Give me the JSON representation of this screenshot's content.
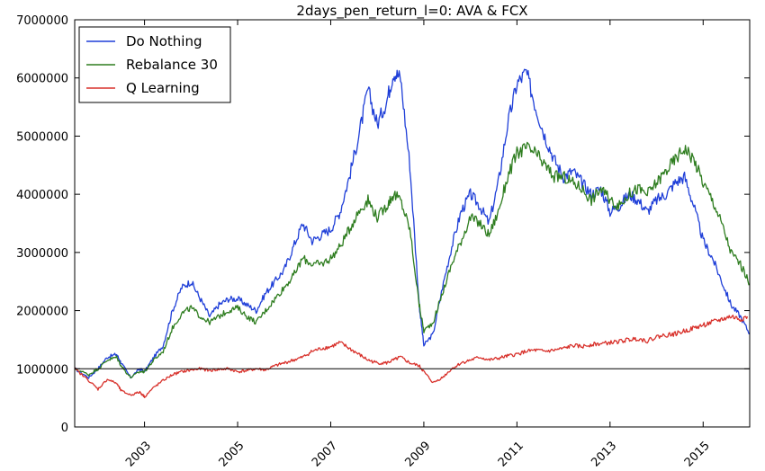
{
  "chart_data": {
    "type": "line",
    "title": "2days_pen_return_l=0: AVA & FCX",
    "xlabel": "",
    "ylabel": "",
    "xlim": [
      2001.5,
      2016.0
    ],
    "ylim": [
      0,
      7000000
    ],
    "x_ticks": [
      2003,
      2005,
      2007,
      2009,
      2011,
      2013,
      2015
    ],
    "x_tick_labels": [
      "2003",
      "2005",
      "2007",
      "2009",
      "2011",
      "2013",
      "2015"
    ],
    "y_ticks": [
      0,
      1000000,
      2000000,
      3000000,
      4000000,
      5000000,
      6000000,
      7000000
    ],
    "y_tick_labels": [
      "0",
      "1000000",
      "2000000",
      "3000000",
      "4000000",
      "5000000",
      "6000000",
      "7000000"
    ],
    "grid": false,
    "legend_position": "top-left",
    "reference_line": {
      "y": 1000000,
      "color": "#000000"
    },
    "series": [
      {
        "name": "Do Nothing",
        "color": "#1f3fd8",
        "x": [
          2001.5,
          2001.8,
          2002.0,
          2002.2,
          2002.4,
          2002.5,
          2002.7,
          2002.9,
          2003.0,
          2003.2,
          2003.4,
          2003.6,
          2003.8,
          2004.0,
          2004.2,
          2004.4,
          2004.6,
          2004.8,
          2005.0,
          2005.2,
          2005.4,
          2005.6,
          2005.8,
          2006.0,
          2006.2,
          2006.4,
          2006.6,
          2006.8,
          2007.0,
          2007.2,
          2007.4,
          2007.6,
          2007.8,
          2008.0,
          2008.2,
          2008.35,
          2008.5,
          2008.7,
          2008.9,
          2009.0,
          2009.2,
          2009.4,
          2009.6,
          2009.8,
          2010.0,
          2010.2,
          2010.4,
          2010.6,
          2010.8,
          2011.0,
          2011.2,
          2011.4,
          2011.6,
          2011.8,
          2012.0,
          2012.2,
          2012.4,
          2012.6,
          2012.8,
          2013.0,
          2013.2,
          2013.4,
          2013.6,
          2013.8,
          2014.0,
          2014.2,
          2014.4,
          2014.6,
          2014.8,
          2015.0,
          2015.2,
          2015.4,
          2015.6,
          2015.8,
          2016.0
        ],
        "values": [
          1000000,
          850000,
          1000000,
          1200000,
          1250000,
          1100000,
          850000,
          1000000,
          950000,
          1200000,
          1400000,
          2000000,
          2400000,
          2500000,
          2200000,
          1900000,
          2100000,
          2200000,
          2200000,
          2100000,
          2000000,
          2300000,
          2500000,
          2700000,
          3100000,
          3500000,
          3200000,
          3300000,
          3400000,
          3700000,
          4300000,
          5000000,
          5800000,
          5200000,
          5600000,
          6100000,
          6000000,
          4500000,
          2100000,
          1400000,
          1600000,
          2400000,
          3100000,
          3700000,
          4000000,
          3800000,
          3500000,
          4200000,
          5200000,
          5900000,
          6100000,
          5500000,
          5000000,
          4600000,
          4300000,
          4400000,
          4200000,
          4000000,
          4100000,
          3700000,
          3800000,
          4000000,
          3900000,
          3700000,
          3900000,
          4000000,
          4200000,
          4300000,
          3800000,
          3200000,
          2900000,
          2500000,
          2100000,
          1900000,
          1600000
        ]
      },
      {
        "name": "Rebalance 30",
        "color": "#2e7d1f",
        "x": [
          2001.5,
          2001.8,
          2002.0,
          2002.2,
          2002.4,
          2002.5,
          2002.7,
          2002.9,
          2003.0,
          2003.2,
          2003.4,
          2003.6,
          2003.8,
          2004.0,
          2004.2,
          2004.4,
          2004.6,
          2004.8,
          2005.0,
          2005.2,
          2005.4,
          2005.6,
          2005.8,
          2006.0,
          2006.2,
          2006.4,
          2006.6,
          2006.8,
          2007.0,
          2007.2,
          2007.4,
          2007.6,
          2007.8,
          2008.0,
          2008.2,
          2008.35,
          2008.5,
          2008.7,
          2008.9,
          2009.0,
          2009.2,
          2009.4,
          2009.6,
          2009.8,
          2010.0,
          2010.2,
          2010.4,
          2010.6,
          2010.8,
          2011.0,
          2011.2,
          2011.4,
          2011.6,
          2011.8,
          2012.0,
          2012.2,
          2012.4,
          2012.6,
          2012.8,
          2013.0,
          2013.2,
          2013.4,
          2013.6,
          2013.8,
          2014.0,
          2014.2,
          2014.4,
          2014.6,
          2014.8,
          2015.0,
          2015.2,
          2015.4,
          2015.6,
          2015.8,
          2016.0
        ],
        "values": [
          1000000,
          900000,
          1000000,
          1150000,
          1200000,
          1050000,
          850000,
          950000,
          950000,
          1150000,
          1300000,
          1700000,
          1950000,
          2050000,
          1900000,
          1800000,
          1900000,
          2000000,
          2050000,
          1900000,
          1800000,
          2000000,
          2200000,
          2400000,
          2600000,
          2900000,
          2800000,
          2800000,
          2900000,
          3100000,
          3400000,
          3700000,
          3900000,
          3600000,
          3800000,
          4000000,
          3900000,
          3400000,
          2100000,
          1650000,
          1800000,
          2300000,
          2800000,
          3200000,
          3600000,
          3500000,
          3300000,
          3700000,
          4300000,
          4700000,
          4800000,
          4700000,
          4500000,
          4300000,
          4300000,
          4200000,
          4100000,
          3900000,
          4100000,
          3900000,
          3800000,
          4000000,
          4100000,
          4000000,
          4200000,
          4400000,
          4600000,
          4800000,
          4600000,
          4200000,
          3900000,
          3500000,
          3000000,
          2800000,
          2450000
        ]
      },
      {
        "name": "Q Learning",
        "color": "#d8312b",
        "x": [
          2001.5,
          2001.8,
          2002.0,
          2002.2,
          2002.4,
          2002.5,
          2002.7,
          2002.9,
          2003.0,
          2003.2,
          2003.4,
          2003.6,
          2003.8,
          2004.0,
          2004.2,
          2004.4,
          2004.6,
          2004.8,
          2005.0,
          2005.2,
          2005.4,
          2005.6,
          2005.8,
          2006.0,
          2006.2,
          2006.4,
          2006.6,
          2006.8,
          2007.0,
          2007.2,
          2007.4,
          2007.6,
          2007.8,
          2008.0,
          2008.2,
          2008.35,
          2008.5,
          2008.7,
          2008.9,
          2009.0,
          2009.2,
          2009.4,
          2009.6,
          2009.8,
          2010.0,
          2010.2,
          2010.4,
          2010.6,
          2010.8,
          2011.0,
          2011.2,
          2011.4,
          2011.6,
          2011.8,
          2012.0,
          2012.2,
          2012.4,
          2012.6,
          2012.8,
          2013.0,
          2013.2,
          2013.4,
          2013.6,
          2013.8,
          2014.0,
          2014.2,
          2014.4,
          2014.6,
          2014.8,
          2015.0,
          2015.2,
          2015.4,
          2015.6,
          2015.8,
          2015.95
        ],
        "values": [
          1000000,
          800000,
          650000,
          820000,
          750000,
          620000,
          550000,
          600000,
          520000,
          680000,
          800000,
          900000,
          950000,
          980000,
          1000000,
          970000,
          990000,
          1000000,
          950000,
          970000,
          1000000,
          980000,
          1050000,
          1100000,
          1150000,
          1200000,
          1300000,
          1350000,
          1380000,
          1450000,
          1350000,
          1250000,
          1150000,
          1100000,
          1100000,
          1150000,
          1200000,
          1100000,
          1050000,
          950000,
          760000,
          850000,
          1000000,
          1100000,
          1150000,
          1200000,
          1150000,
          1180000,
          1220000,
          1250000,
          1300000,
          1320000,
          1300000,
          1320000,
          1350000,
          1400000,
          1380000,
          1420000,
          1430000,
          1450000,
          1470000,
          1500000,
          1520000,
          1480000,
          1550000,
          1580000,
          1600000,
          1650000,
          1700000,
          1750000,
          1800000,
          1850000,
          1900000,
          1850000,
          1900000
        ]
      }
    ]
  }
}
